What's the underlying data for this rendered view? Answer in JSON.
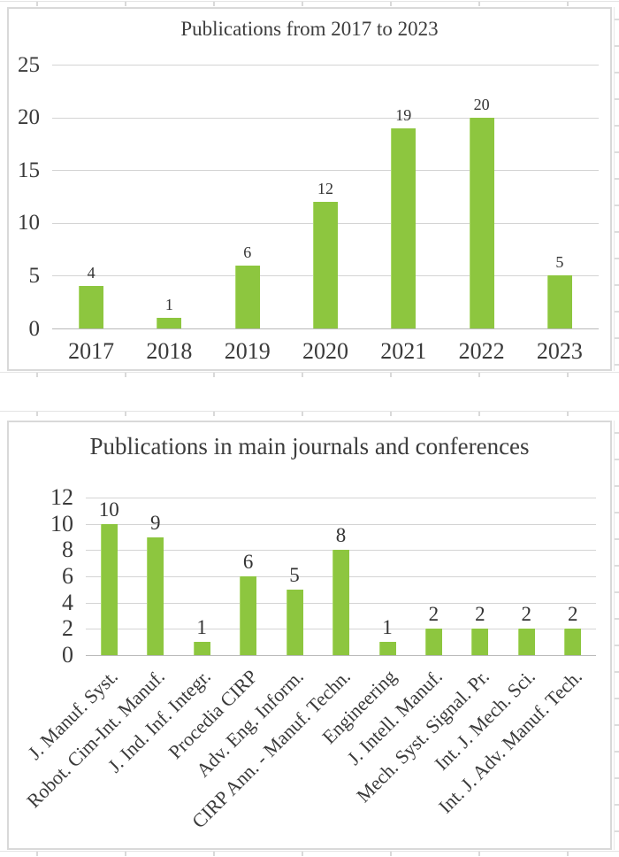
{
  "figure": {
    "background": "#ffffff",
    "bar_color": "#8DC63F",
    "gridline_color": "#D4D4D4",
    "panel_border_color": "#D9D9D9",
    "text_color": "#3D3D3D"
  },
  "chart_data": [
    {
      "type": "bar",
      "title": "Publications from 2017 to 2023",
      "categories": [
        "2017",
        "2018",
        "2019",
        "2020",
        "2021",
        "2022",
        "2023"
      ],
      "values": [
        4,
        1,
        6,
        12,
        19,
        20,
        5
      ],
      "xlabel": "",
      "ylabel": "",
      "ylim": [
        0,
        25
      ],
      "yticks": [
        0,
        5,
        10,
        15,
        20,
        25
      ],
      "grid": true,
      "legend": "none",
      "data_labels": true,
      "bar_color": "#8DC63F"
    },
    {
      "type": "bar",
      "title": "Publications in main journals and conferences",
      "categories": [
        "J. Manuf. Syst.",
        "Robot. Cim-Int. Manuf.",
        "J. Ind. Inf. Integr.",
        "Procedia CIRP",
        "Adv. Eng. Inform.",
        "CIRP Ann. - Manuf. Techn.",
        "Engineering",
        "J. Intell. Manuf.",
        "Mech. Syst. Signal. Pr.",
        "Int. J. Mech. Sci.",
        "Int. J. Adv. Manuf. Tech."
      ],
      "values": [
        10,
        9,
        1,
        6,
        5,
        8,
        1,
        2,
        2,
        2,
        2
      ],
      "xlabel": "",
      "ylabel": "",
      "ylim": [
        0,
        12
      ],
      "yticks": [
        0,
        2,
        4,
        6,
        8,
        10,
        12
      ],
      "grid": true,
      "legend": "none",
      "data_labels": true,
      "x_tick_rotation_deg": 45,
      "bar_color": "#8DC63F"
    }
  ]
}
